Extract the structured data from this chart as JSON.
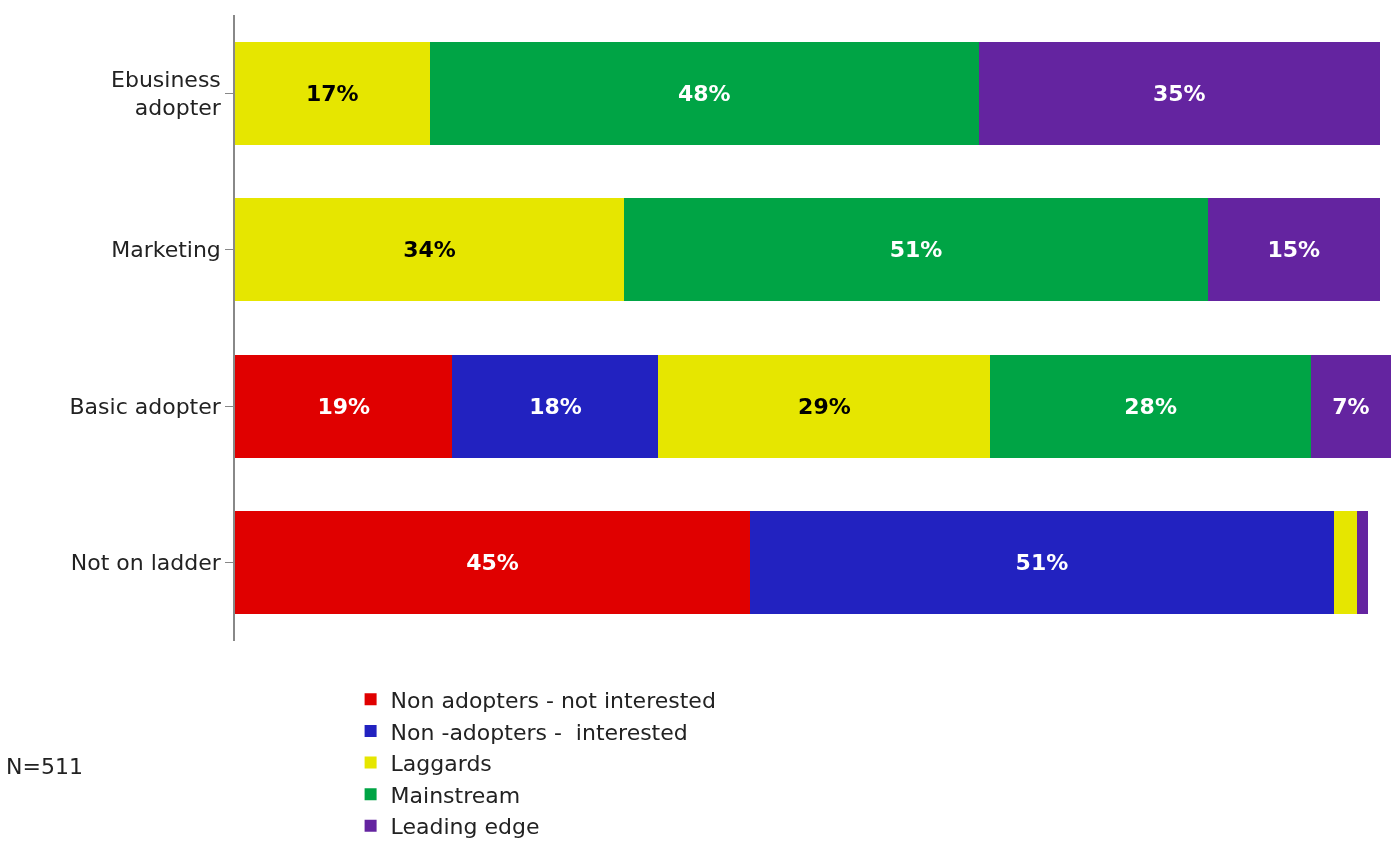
{
  "chart_data": {
    "type": "bar",
    "orientation": "horizontal",
    "stacked": true,
    "categories": [
      "Ebusiness\nadopter",
      "Marketing",
      "Basic adopter",
      "Not on ladder"
    ],
    "series": [
      {
        "name": "Non adopters - not interested",
        "color": "#e00000",
        "values": [
          null,
          null,
          19,
          45
        ],
        "value_labels": [
          null,
          null,
          "19%",
          "45%"
        ]
      },
      {
        "name": "Non -adopters -  interested",
        "color": "#2222c0",
        "values": [
          null,
          null,
          18,
          51
        ],
        "value_labels": [
          null,
          null,
          "18%",
          "51%"
        ]
      },
      {
        "name": "Laggards",
        "color": "#e6e600",
        "values": [
          17,
          34,
          29,
          2
        ],
        "value_labels": [
          "17%",
          "34%",
          "29%",
          null
        ]
      },
      {
        "name": "Mainstream",
        "color": "#00a445",
        "values": [
          48,
          51,
          28,
          null
        ],
        "value_labels": [
          "48%",
          "51%",
          "28%",
          null
        ]
      },
      {
        "name": "Leading edge",
        "color": "#6424a0",
        "values": [
          35,
          15,
          7,
          1
        ],
        "value_labels": [
          "35%",
          "15%",
          "7%",
          null
        ]
      }
    ],
    "xlim": [
      0,
      101
    ],
    "legend": "bottom",
    "tick_labels": "y",
    "annotations": [
      "N=511"
    ]
  }
}
